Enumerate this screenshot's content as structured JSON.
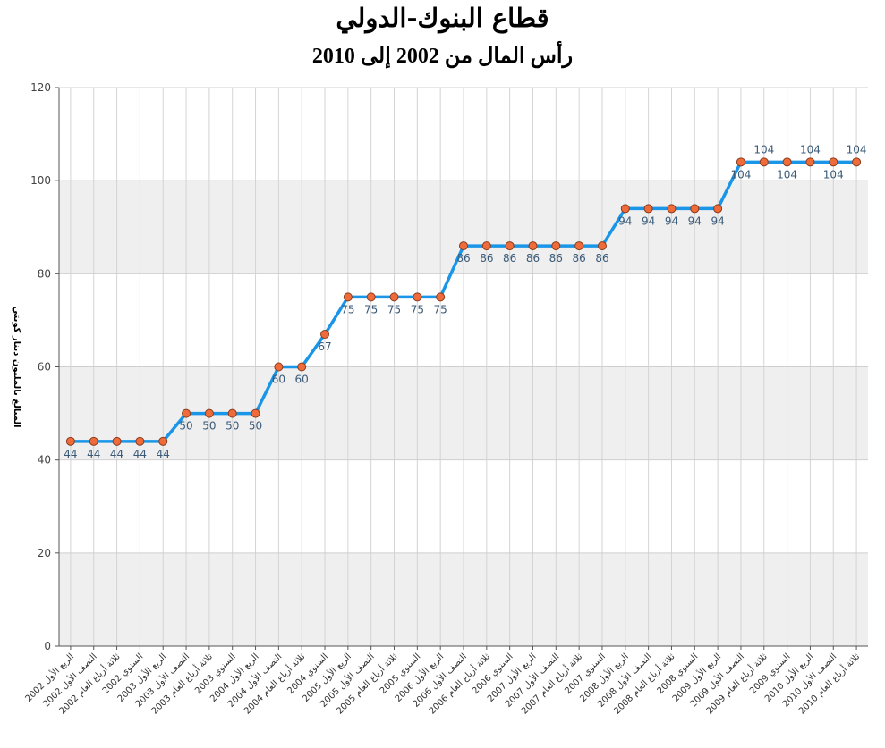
{
  "chart_data": {
    "type": "line",
    "title": "قطاع البنوك-الدولي",
    "subtitle": "رأس المال من 2002 إلى 2010",
    "ylabel": "المبالغ بالمليون دينار كويتي",
    "xlabel": "",
    "ylim": [
      0,
      120
    ],
    "yticks": [
      0,
      20,
      40,
      60,
      80,
      100,
      120
    ],
    "grid": true,
    "categories": [
      "2002 الربع الأول",
      "2002 النصف الأول",
      "2002 ثلاثة أرباع العام",
      "2002 السنوي",
      "2003 الربع الأول",
      "2003 النصف الأول",
      "2003 ثلاثة أرباع العام",
      "2003 السنوي",
      "2004 الربع الأول",
      "2004 النصف الأول",
      "2004 ثلاثة أرباع العام",
      "2004 السنوي",
      "2005 الربع الأول",
      "2005 النصف الأول",
      "2005 ثلاثة أرباع العام",
      "2005 السنوي",
      "2006 الربع الأول",
      "2006 النصف الأول",
      "2006 ثلاثة أرباع العام",
      "2006 السنوي",
      "2007 الربع الأول",
      "2007 النصف الأول",
      "2007 ثلاثة أرباع العام",
      "2007 السنوي",
      "2008 الربع الأول",
      "2008 النصف الأول",
      "2008 ثلاثة أرباع العام",
      "2008 السنوي",
      "2009 الربع الأول",
      "2009 النصف الأول",
      "2009 ثلاثة أرباع العام",
      "2009 السنوي",
      "2010 الربع الأول",
      "2010 النصف الأول",
      "2010 ثلاثة أرباع العام"
    ],
    "series": [
      {
        "values": [
          44,
          44,
          44,
          44,
          44,
          50,
          50,
          50,
          50,
          60,
          60,
          67,
          75,
          75,
          75,
          75,
          75,
          86,
          86,
          86,
          86,
          86,
          86,
          86,
          94,
          94,
          94,
          94,
          94,
          104,
          104,
          104,
          104,
          104,
          104
        ],
        "line_color": "#1a96e8",
        "marker_color": "#ef6c3a"
      }
    ]
  }
}
